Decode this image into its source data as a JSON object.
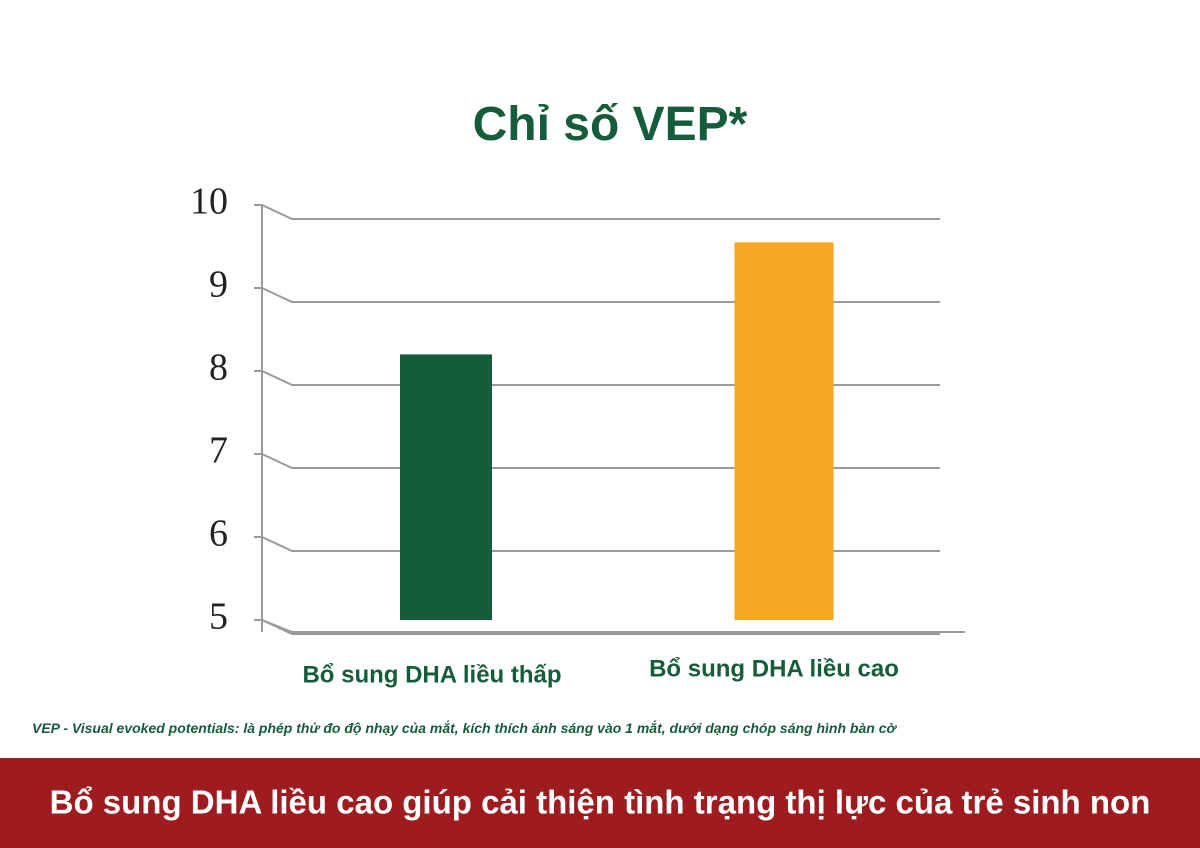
{
  "chart_data": {
    "type": "bar",
    "title": "Chỉ số VEP*",
    "categories": [
      "Bổ sung DHA liều thấp",
      "Bổ sung DHA liều cao"
    ],
    "series": [
      {
        "name": null,
        "colors": [
          "#145c3c",
          "#f5a623"
        ],
        "values": [
          8.2,
          9.55
        ]
      }
    ],
    "ylim": [
      5,
      10
    ],
    "yticks": [
      5,
      6,
      7,
      8,
      9,
      10
    ],
    "grid": true,
    "footnote": "VEP - Visual evoked potentials: là phép thử đo độ nhạy của mắt, kích thích ánh sáng vào 1 mắt, dưới dạng chóp sáng hình bàn cờ",
    "caption": "Bổ sung DHA liều cao giúp cải thiện tình trạng thị lực của trẻ sinh non"
  }
}
